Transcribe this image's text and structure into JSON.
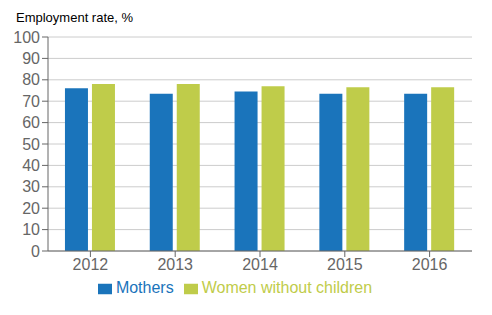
{
  "chart_data": {
    "type": "bar",
    "title": "Employment rate, %",
    "categories": [
      "2012",
      "2013",
      "2014",
      "2015",
      "2016"
    ],
    "series": [
      {
        "name": "Mothers",
        "color": "#1a74bb",
        "values": [
          76.0,
          73.5,
          74.5,
          73.5,
          73.5
        ]
      },
      {
        "name": "Women without children",
        "color": "#bfcc4a",
        "values": [
          78.0,
          78.0,
          77.0,
          76.5,
          76.5
        ]
      }
    ],
    "ylim": [
      0,
      100
    ],
    "yticks": [
      0,
      10,
      20,
      30,
      40,
      50,
      60,
      70,
      80,
      90,
      100
    ],
    "grid": true,
    "legend": "bottom"
  }
}
